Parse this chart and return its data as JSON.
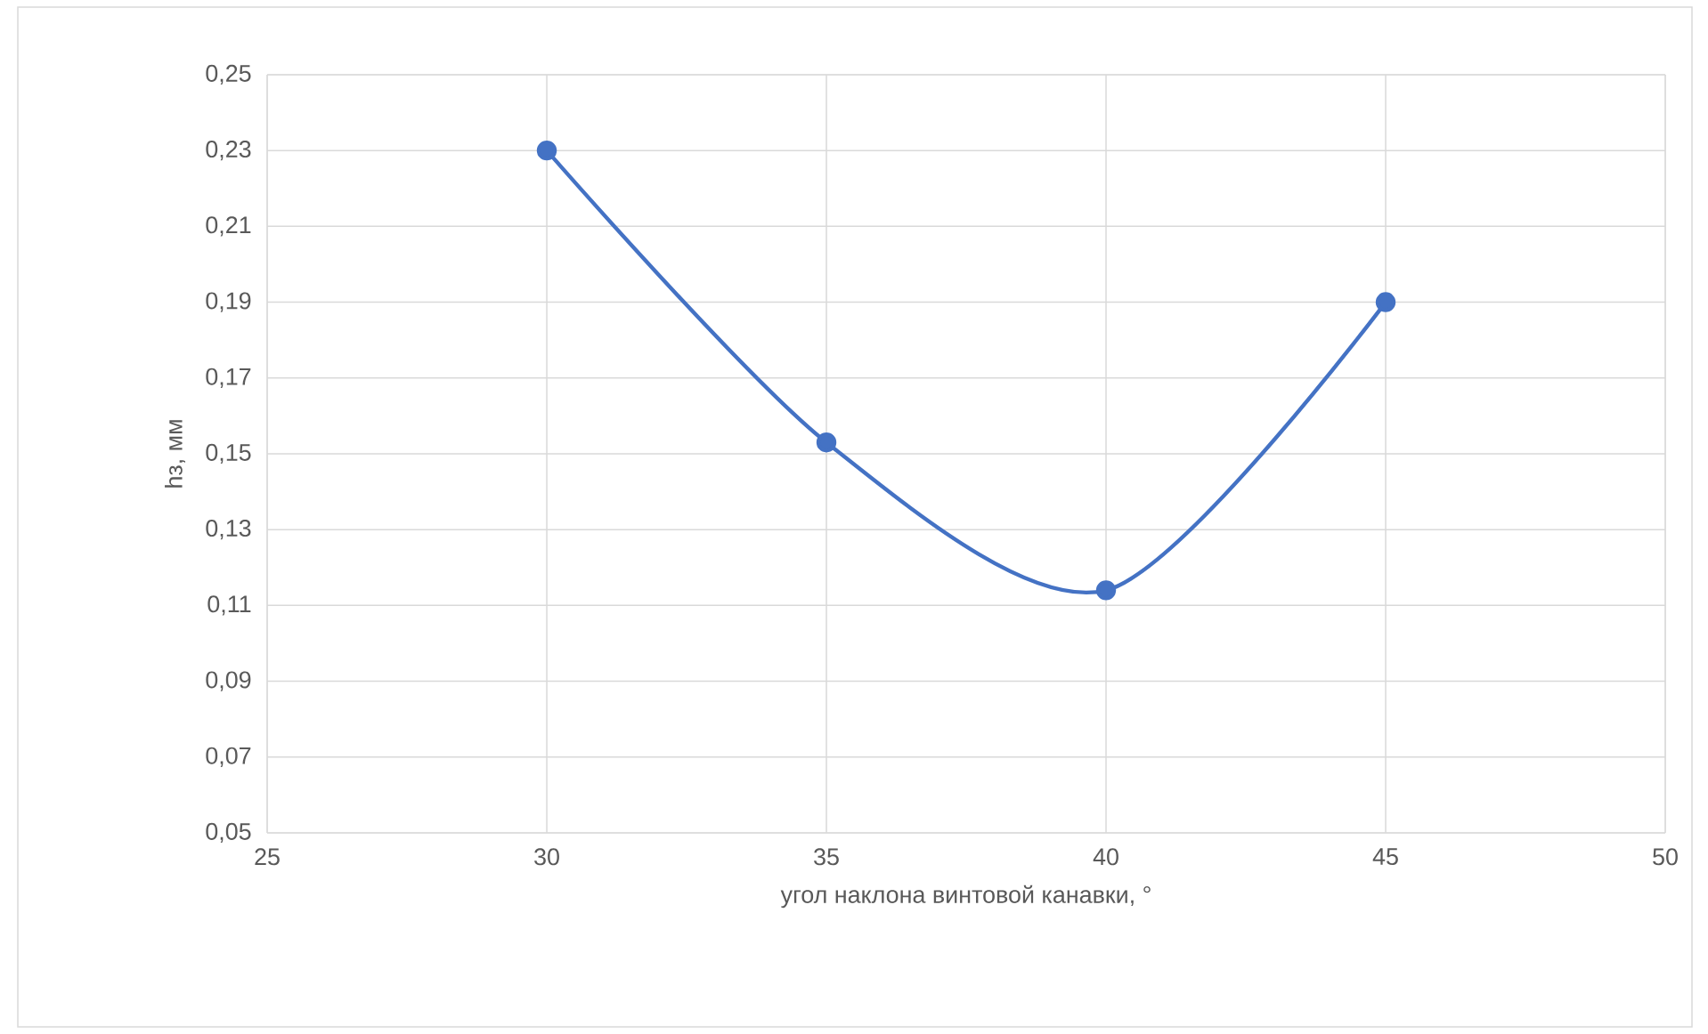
{
  "chart_data": {
    "type": "line",
    "xlabel": "угол наклона винтовой канавки,  °",
    "ylabel": "hз, мм",
    "x": [
      30,
      35,
      40,
      45
    ],
    "series": [
      {
        "color": "#4472c4",
        "values": [
          0.23,
          0.153,
          0.114,
          0.19
        ]
      }
    ],
    "xlim": [
      25,
      50
    ],
    "xticks": [
      25,
      30,
      35,
      40,
      45,
      50
    ],
    "ylim": [
      0.05,
      0.25
    ],
    "yticks": [
      {
        "value": 0.05,
        "label": "0,05"
      },
      {
        "value": 0.07,
        "label": "0,07"
      },
      {
        "value": 0.09,
        "label": "0,09"
      },
      {
        "value": 0.11,
        "label": "0,11"
      },
      {
        "value": 0.13,
        "label": "0,13"
      },
      {
        "value": 0.15,
        "label": "0,15"
      },
      {
        "value": 0.17,
        "label": "0,17"
      },
      {
        "value": 0.19,
        "label": "0,19"
      },
      {
        "value": 0.21,
        "label": "0,21"
      },
      {
        "value": 0.23,
        "label": "0,23"
      },
      {
        "value": 0.25,
        "label": "0,25"
      }
    ],
    "grid": true,
    "marker": "circle",
    "line_style": "solid"
  }
}
